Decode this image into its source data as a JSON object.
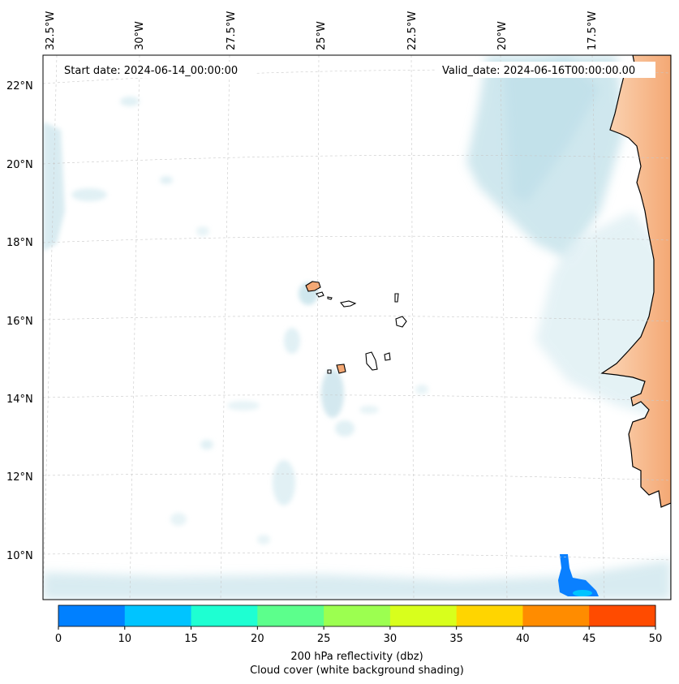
{
  "map": {
    "start_date": "Start date: 2024-06-14_00:00:00",
    "valid_date": "Valid_date: 2024-06-16T00:00:00.00",
    "lon_labels": [
      "32.5°W",
      "30°W",
      "27.5°W",
      "25°W",
      "22.5°W",
      "20°W",
      "17.5°W"
    ],
    "lat_labels": [
      "22°N",
      "20°N",
      "18°N",
      "16°N",
      "14°N",
      "12°N",
      "10°N"
    ],
    "extent": {
      "lon_min": -32.6,
      "lon_max": -15.9,
      "lat_min": 8.9,
      "lat_max": 22.8
    },
    "land_color": "#f6b787",
    "coast_color": "#000000",
    "cloud_color": "#a8d4e0",
    "reflectivity_patch_color": "#0a80ff"
  },
  "colorbar": {
    "ticks": [
      "0",
      "10",
      "15",
      "20",
      "25",
      "30",
      "35",
      "40",
      "45",
      "50"
    ],
    "colors": [
      "#0080ff",
      "#00c4ff",
      "#1effd2",
      "#5cff8c",
      "#9cff50",
      "#d8ff1c",
      "#ffd500",
      "#ff8c00",
      "#ff4b00"
    ],
    "label_line1": "200 hPa reflectivity (dbz)",
    "label_line2": "Cloud cover (white background shading)"
  }
}
